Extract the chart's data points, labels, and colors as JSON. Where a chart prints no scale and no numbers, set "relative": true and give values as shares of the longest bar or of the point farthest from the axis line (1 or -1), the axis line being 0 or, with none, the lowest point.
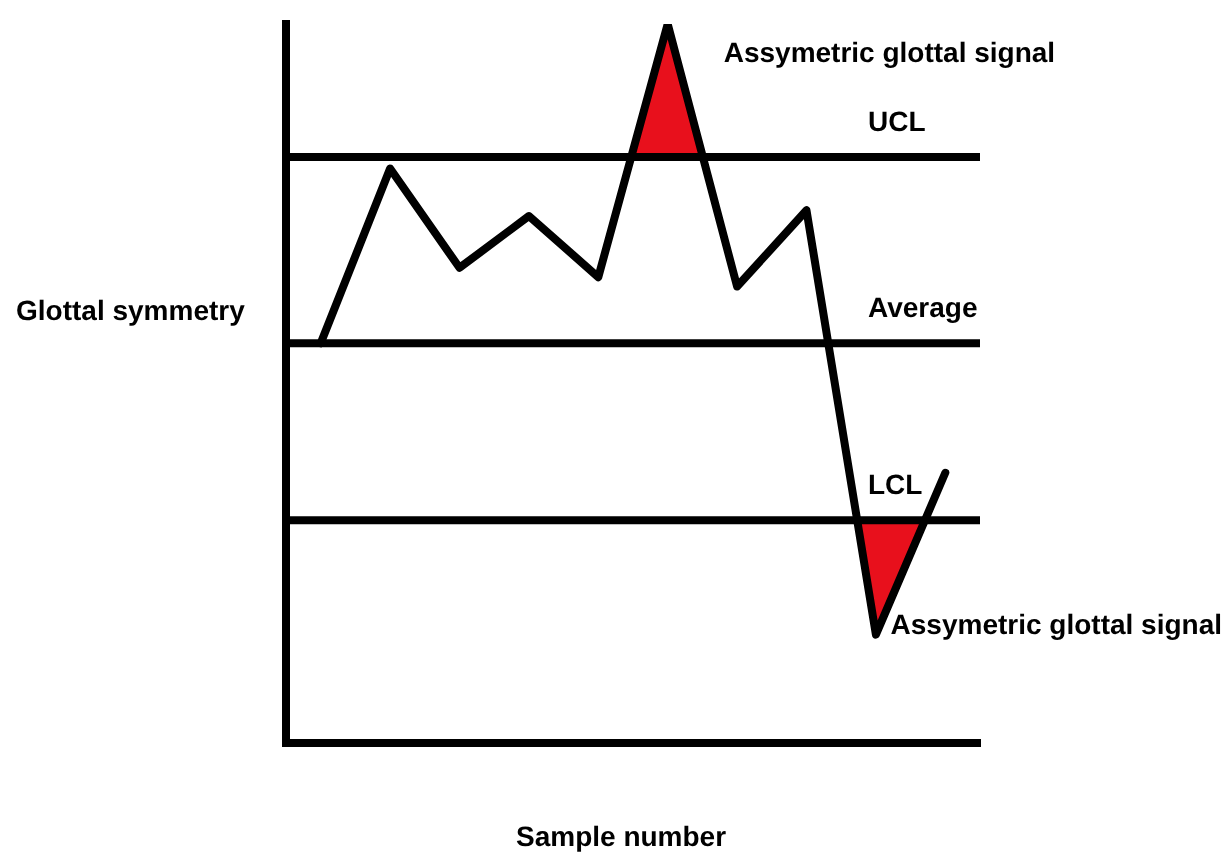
{
  "chart_data": {
    "type": "line",
    "relative": true,
    "xlabel": "Sample number",
    "ylabel": "Glottal symmetry",
    "categories": [
      null,
      null,
      null,
      null,
      null,
      null,
      null,
      null,
      null,
      null
    ],
    "series": [
      {
        "color": "#000000",
        "values": [
          0.556,
          0.799,
          0.661,
          0.733,
          0.648,
          1.0,
          0.635,
          0.741,
          0.151,
          0.376
        ]
      }
    ],
    "ref_lines": [
      {
        "axis": "y",
        "value": 0.815,
        "label": "UCL",
        "color": "#000000"
      },
      {
        "axis": "y",
        "value": 0.556,
        "label": "Average",
        "color": "#000000"
      },
      {
        "axis": "y",
        "value": 0.31,
        "label": "LCL",
        "color": "#000000"
      }
    ],
    "annotations": [
      "Assymetric glottal signal",
      "Assymetric glottal signal"
    ],
    "legend": false,
    "grid": false,
    "marker": "none",
    "line_style": "solid"
  }
}
